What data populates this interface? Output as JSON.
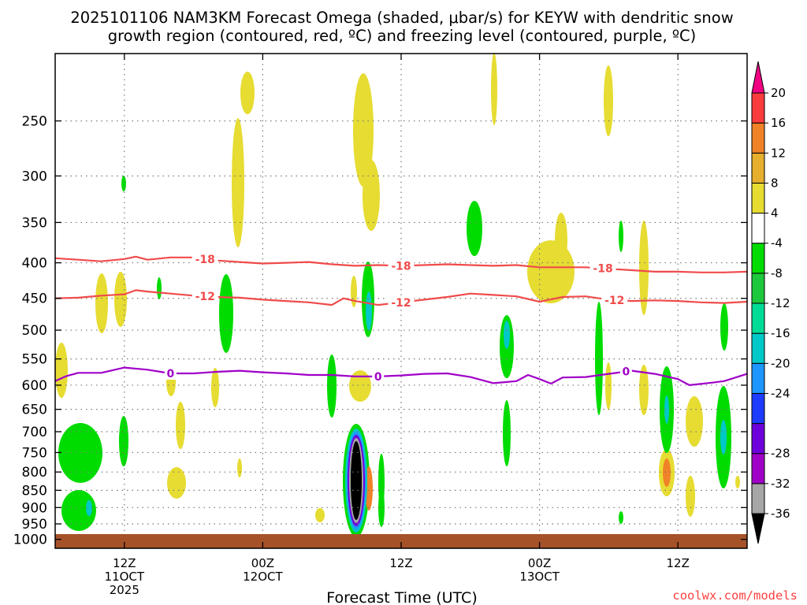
{
  "title_line1": "2025101106 NAM3KM Forecast Omega (shaded, μbar/s) for KEYW with dendritic snow",
  "title_line2": "growth region (contoured, red, ºC) and freezing level (contoured, purple, ºC)",
  "watermark": "coolwx.com/models",
  "chart_data": {
    "type": "heatmap",
    "xlabel": "Forecast Time (UTC)",
    "ylabel": "",
    "x_range_hours": [
      0,
      60
    ],
    "y_scale": "log-pressure",
    "y_range_hpa": [
      1030,
      200
    ],
    "grid": true,
    "y_ticks": [
      250,
      300,
      350,
      400,
      450,
      500,
      550,
      600,
      650,
      700,
      750,
      800,
      850,
      900,
      950,
      1000
    ],
    "x_ticks": [
      {
        "hour": 6,
        "line1": "12Z",
        "line2": "11OCT",
        "line3": "2025"
      },
      {
        "hour": 18,
        "line1": "00Z",
        "line2": "12OCT",
        "line3": ""
      },
      {
        "hour": 30,
        "line1": "12Z",
        "line2": "",
        "line3": ""
      },
      {
        "hour": 42,
        "line1": "00Z",
        "line2": "13OCT",
        "line3": ""
      },
      {
        "hour": 54,
        "line1": "12Z",
        "line2": "",
        "line3": ""
      }
    ],
    "colorbar": {
      "unit": "μbar/s",
      "bins": [
        {
          "color": "#000000",
          "label": "-36"
        },
        {
          "color": "#a6a6a6",
          "label": "-32"
        },
        {
          "color": "#a000c8",
          "label": "-28"
        },
        {
          "color": "#6e00dc",
          "label": ""
        },
        {
          "color": "#1e3cff",
          "label": "-24"
        },
        {
          "color": "#1e96ff",
          "label": "-20"
        },
        {
          "color": "#00c8c8",
          "label": "-16"
        },
        {
          "color": "#00dc96",
          "label": "-12"
        },
        {
          "color": "#1ec83c",
          "label": "-8"
        },
        {
          "color": "#00dc00",
          "label": "-4"
        },
        {
          "color": "#ffffff",
          "label": "4"
        },
        {
          "color": "#e6dc32",
          "label": "8"
        },
        {
          "color": "#e6af2d",
          "label": "12"
        },
        {
          "color": "#f08228",
          "label": "16"
        },
        {
          "color": "#fa3c3c",
          "label": "20"
        },
        {
          "color": "#f00082",
          "label": ""
        }
      ]
    },
    "contours": [
      {
        "name": "-18",
        "color": "#f04b4b",
        "label_hours": [
          13,
          30,
          47.5
        ],
        "points": [
          [
            0,
            394
          ],
          [
            2,
            396
          ],
          [
            4,
            398
          ],
          [
            6,
            395
          ],
          [
            7,
            392
          ],
          [
            8,
            396
          ],
          [
            10,
            393
          ],
          [
            12,
            393
          ],
          [
            14,
            397
          ],
          [
            16,
            399
          ],
          [
            18,
            401
          ],
          [
            20,
            400
          ],
          [
            22,
            399
          ],
          [
            24,
            402
          ],
          [
            26,
            404
          ],
          [
            28,
            403
          ],
          [
            30,
            404
          ],
          [
            32,
            403
          ],
          [
            34,
            402
          ],
          [
            36,
            403
          ],
          [
            38,
            404
          ],
          [
            40,
            403
          ],
          [
            42,
            406
          ],
          [
            44,
            406
          ],
          [
            46,
            406
          ],
          [
            48,
            408
          ],
          [
            50,
            410
          ],
          [
            52,
            412
          ],
          [
            54,
            412
          ],
          [
            56,
            413
          ],
          [
            58,
            413
          ],
          [
            60,
            412
          ]
        ]
      },
      {
        "name": "-12",
        "color": "#f04b4b",
        "label_hours": [
          13,
          30,
          48.5
        ],
        "points": [
          [
            0,
            450
          ],
          [
            2,
            449
          ],
          [
            4,
            446
          ],
          [
            6,
            444
          ],
          [
            7,
            438
          ],
          [
            8,
            440
          ],
          [
            10,
            443
          ],
          [
            12,
            446
          ],
          [
            14,
            448
          ],
          [
            16,
            449
          ],
          [
            18,
            452
          ],
          [
            20,
            454
          ],
          [
            22,
            456
          ],
          [
            24,
            460
          ],
          [
            25,
            450
          ],
          [
            26,
            454
          ],
          [
            28,
            460
          ],
          [
            30,
            456
          ],
          [
            32,
            452
          ],
          [
            34,
            448
          ],
          [
            36,
            443
          ],
          [
            38,
            445
          ],
          [
            40,
            447
          ],
          [
            42,
            455
          ],
          [
            44,
            448
          ],
          [
            46,
            447
          ],
          [
            48,
            452
          ],
          [
            50,
            454
          ],
          [
            52,
            453
          ],
          [
            54,
            454
          ],
          [
            56,
            456
          ],
          [
            58,
            457
          ],
          [
            60,
            455
          ]
        ]
      },
      {
        "name": "0",
        "color": "#a000c8",
        "label_hours": [
          10,
          28,
          49.5
        ],
        "points": [
          [
            0,
            592
          ],
          [
            1,
            582
          ],
          [
            2,
            576
          ],
          [
            4,
            576
          ],
          [
            6,
            566
          ],
          [
            8,
            570
          ],
          [
            10,
            577
          ],
          [
            12,
            577
          ],
          [
            14,
            574
          ],
          [
            16,
            572
          ],
          [
            18,
            575
          ],
          [
            20,
            577
          ],
          [
            22,
            580
          ],
          [
            24,
            580
          ],
          [
            26,
            583
          ],
          [
            28,
            583
          ],
          [
            30,
            581
          ],
          [
            32,
            578
          ],
          [
            34,
            577
          ],
          [
            36,
            584
          ],
          [
            38,
            596
          ],
          [
            40,
            592
          ],
          [
            41,
            580
          ],
          [
            42,
            588
          ],
          [
            43,
            597
          ],
          [
            44,
            585
          ],
          [
            46,
            584
          ],
          [
            48,
            578
          ],
          [
            50,
            572
          ],
          [
            52,
            578
          ],
          [
            54,
            588
          ],
          [
            55,
            600
          ],
          [
            57,
            595
          ],
          [
            58,
            592
          ],
          [
            60,
            578
          ]
        ]
      }
    ]
  }
}
